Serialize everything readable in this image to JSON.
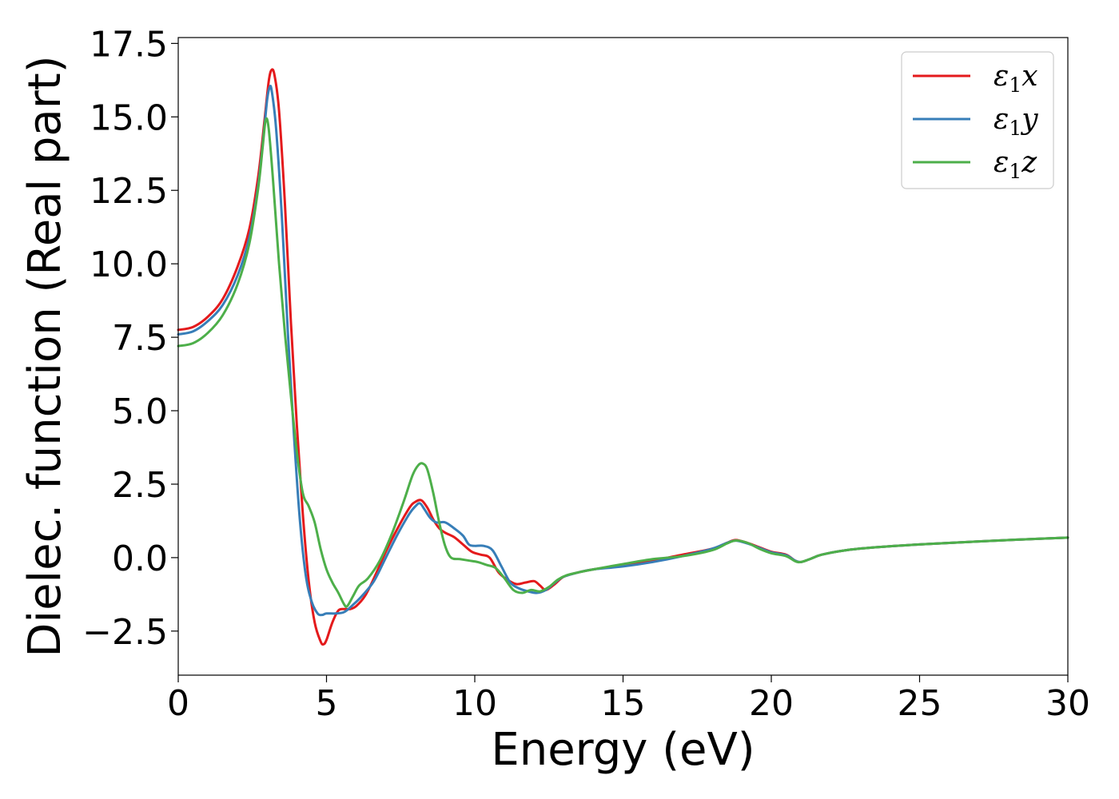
{
  "chart_data": {
    "type": "line",
    "xlabel": "Energy (eV)",
    "ylabel": "Dielec. function (Real part)",
    "xlim": [
      0,
      30
    ],
    "ylim": [
      -4.0,
      17.7
    ],
    "xticks": [
      0,
      5,
      10,
      15,
      20,
      25,
      30
    ],
    "xtick_labels": [
      "0",
      "5",
      "10",
      "15",
      "20",
      "25",
      "30"
    ],
    "yticks": [
      -2.5,
      0.0,
      2.5,
      5.0,
      7.5,
      10.0,
      12.5,
      15.0,
      17.5
    ],
    "ytick_labels": [
      "−2.5",
      "0.0",
      "2.5",
      "5.0",
      "7.5",
      "10.0",
      "12.5",
      "15.0",
      "17.5"
    ],
    "grid": false,
    "legend_position": "top-right",
    "series": [
      {
        "name": "ε₁x",
        "legend": {
          "base": "ε",
          "sub": "1",
          "suffix": "x"
        },
        "color": "#e41a1c",
        "points": [
          [
            0,
            7.75
          ],
          [
            0.5,
            7.85
          ],
          [
            1.0,
            8.2
          ],
          [
            1.5,
            8.8
          ],
          [
            2.0,
            9.9
          ],
          [
            2.4,
            11.2
          ],
          [
            2.7,
            13.0
          ],
          [
            2.9,
            14.8
          ],
          [
            3.05,
            16.2
          ],
          [
            3.15,
            16.6
          ],
          [
            3.25,
            16.4
          ],
          [
            3.4,
            15.2
          ],
          [
            3.6,
            12.0
          ],
          [
            3.8,
            8.0
          ],
          [
            4.0,
            4.5
          ],
          [
            4.2,
            1.5
          ],
          [
            4.4,
            -0.8
          ],
          [
            4.6,
            -2.2
          ],
          [
            4.8,
            -2.85
          ],
          [
            4.9,
            -2.95
          ],
          [
            5.0,
            -2.8
          ],
          [
            5.2,
            -2.2
          ],
          [
            5.4,
            -1.8
          ],
          [
            5.6,
            -1.75
          ],
          [
            5.8,
            -1.75
          ],
          [
            6.0,
            -1.65
          ],
          [
            6.3,
            -1.3
          ],
          [
            6.6,
            -0.7
          ],
          [
            7.0,
            0.2
          ],
          [
            7.4,
            1.0
          ],
          [
            7.8,
            1.7
          ],
          [
            8.0,
            1.9
          ],
          [
            8.2,
            1.95
          ],
          [
            8.4,
            1.7
          ],
          [
            8.6,
            1.3
          ],
          [
            8.8,
            1.0
          ],
          [
            9.0,
            0.85
          ],
          [
            9.3,
            0.7
          ],
          [
            9.6,
            0.45
          ],
          [
            9.9,
            0.2
          ],
          [
            10.2,
            0.1
          ],
          [
            10.5,
            0.0
          ],
          [
            10.8,
            -0.5
          ],
          [
            11.1,
            -0.75
          ],
          [
            11.4,
            -0.9
          ],
          [
            11.7,
            -0.85
          ],
          [
            12.0,
            -0.8
          ],
          [
            12.2,
            -0.95
          ],
          [
            12.4,
            -1.1
          ],
          [
            12.7,
            -0.9
          ],
          [
            13.0,
            -0.65
          ],
          [
            13.5,
            -0.5
          ],
          [
            14.0,
            -0.4
          ],
          [
            15.0,
            -0.25
          ],
          [
            16.0,
            -0.1
          ],
          [
            17.0,
            0.1
          ],
          [
            18.0,
            0.3
          ],
          [
            18.5,
            0.5
          ],
          [
            18.8,
            0.6
          ],
          [
            19.2,
            0.5
          ],
          [
            19.6,
            0.35
          ],
          [
            20.0,
            0.2
          ],
          [
            20.5,
            0.1
          ],
          [
            20.8,
            -0.1
          ],
          [
            21.0,
            -0.15
          ],
          [
            21.3,
            -0.05
          ],
          [
            21.7,
            0.1
          ],
          [
            22.5,
            0.25
          ],
          [
            23.5,
            0.35
          ],
          [
            25.0,
            0.45
          ],
          [
            27.0,
            0.55
          ],
          [
            28.5,
            0.62
          ],
          [
            30.0,
            0.68
          ]
        ]
      },
      {
        "name": "ε₁y",
        "legend": {
          "base": "ε",
          "sub": "1",
          "suffix": "y"
        },
        "color": "#377eb8",
        "points": [
          [
            0,
            7.6
          ],
          [
            0.5,
            7.7
          ],
          [
            1.0,
            8.05
          ],
          [
            1.5,
            8.6
          ],
          [
            2.0,
            9.6
          ],
          [
            2.4,
            10.9
          ],
          [
            2.7,
            12.7
          ],
          [
            2.9,
            14.6
          ],
          [
            3.0,
            15.6
          ],
          [
            3.08,
            16.0
          ],
          [
            3.15,
            15.9
          ],
          [
            3.3,
            14.6
          ],
          [
            3.5,
            11.5
          ],
          [
            3.7,
            7.6
          ],
          [
            3.9,
            4.2
          ],
          [
            4.1,
            1.3
          ],
          [
            4.3,
            -0.6
          ],
          [
            4.5,
            -1.5
          ],
          [
            4.7,
            -1.9
          ],
          [
            4.85,
            -1.95
          ],
          [
            5.0,
            -1.9
          ],
          [
            5.3,
            -1.9
          ],
          [
            5.6,
            -1.85
          ],
          [
            5.9,
            -1.6
          ],
          [
            6.2,
            -1.3
          ],
          [
            6.6,
            -0.8
          ],
          [
            7.0,
            0.0
          ],
          [
            7.4,
            0.8
          ],
          [
            7.8,
            1.5
          ],
          [
            8.0,
            1.75
          ],
          [
            8.15,
            1.85
          ],
          [
            8.3,
            1.65
          ],
          [
            8.5,
            1.35
          ],
          [
            8.7,
            1.2
          ],
          [
            9.0,
            1.2
          ],
          [
            9.3,
            1.0
          ],
          [
            9.6,
            0.75
          ],
          [
            9.8,
            0.45
          ],
          [
            10.0,
            0.4
          ],
          [
            10.3,
            0.4
          ],
          [
            10.6,
            0.25
          ],
          [
            10.9,
            -0.3
          ],
          [
            11.2,
            -0.85
          ],
          [
            11.5,
            -1.05
          ],
          [
            11.8,
            -1.15
          ],
          [
            12.1,
            -1.2
          ],
          [
            12.4,
            -1.1
          ],
          [
            12.7,
            -0.85
          ],
          [
            13.0,
            -0.65
          ],
          [
            13.5,
            -0.5
          ],
          [
            14.0,
            -0.4
          ],
          [
            15.0,
            -0.3
          ],
          [
            16.0,
            -0.15
          ],
          [
            17.0,
            0.05
          ],
          [
            18.0,
            0.3
          ],
          [
            18.5,
            0.5
          ],
          [
            18.8,
            0.58
          ],
          [
            19.2,
            0.48
          ],
          [
            19.6,
            0.33
          ],
          [
            20.0,
            0.18
          ],
          [
            20.5,
            0.08
          ],
          [
            20.8,
            -0.1
          ],
          [
            21.0,
            -0.15
          ],
          [
            21.3,
            -0.05
          ],
          [
            21.7,
            0.1
          ],
          [
            22.5,
            0.25
          ],
          [
            23.5,
            0.35
          ],
          [
            25.0,
            0.45
          ],
          [
            27.0,
            0.55
          ],
          [
            28.5,
            0.62
          ],
          [
            30.0,
            0.68
          ]
        ]
      },
      {
        "name": "ε₁z",
        "legend": {
          "base": "ε",
          "sub": "1",
          "suffix": "z"
        },
        "color": "#4daf4a",
        "points": [
          [
            0,
            7.2
          ],
          [
            0.5,
            7.3
          ],
          [
            1.0,
            7.65
          ],
          [
            1.5,
            8.25
          ],
          [
            2.0,
            9.3
          ],
          [
            2.4,
            10.7
          ],
          [
            2.7,
            12.6
          ],
          [
            2.85,
            14.0
          ],
          [
            2.95,
            14.9
          ],
          [
            3.05,
            14.6
          ],
          [
            3.2,
            12.8
          ],
          [
            3.4,
            10.0
          ],
          [
            3.6,
            7.6
          ],
          [
            3.8,
            5.5
          ],
          [
            4.0,
            3.6
          ],
          [
            4.2,
            2.2
          ],
          [
            4.4,
            1.75
          ],
          [
            4.6,
            1.2
          ],
          [
            4.8,
            0.3
          ],
          [
            5.0,
            -0.4
          ],
          [
            5.2,
            -0.85
          ],
          [
            5.4,
            -1.2
          ],
          [
            5.6,
            -1.6
          ],
          [
            5.7,
            -1.65
          ],
          [
            5.9,
            -1.3
          ],
          [
            6.1,
            -0.95
          ],
          [
            6.4,
            -0.7
          ],
          [
            6.8,
            -0.1
          ],
          [
            7.2,
            0.8
          ],
          [
            7.6,
            1.9
          ],
          [
            7.9,
            2.8
          ],
          [
            8.1,
            3.15
          ],
          [
            8.25,
            3.2
          ],
          [
            8.4,
            3.0
          ],
          [
            8.6,
            2.2
          ],
          [
            8.8,
            1.2
          ],
          [
            9.0,
            0.4
          ],
          [
            9.2,
            0.0
          ],
          [
            9.5,
            -0.05
          ],
          [
            9.8,
            -0.1
          ],
          [
            10.1,
            -0.15
          ],
          [
            10.4,
            -0.25
          ],
          [
            10.7,
            -0.35
          ],
          [
            11.0,
            -0.7
          ],
          [
            11.3,
            -1.1
          ],
          [
            11.6,
            -1.2
          ],
          [
            11.9,
            -1.1
          ],
          [
            12.2,
            -1.15
          ],
          [
            12.5,
            -1.0
          ],
          [
            12.8,
            -0.75
          ],
          [
            13.1,
            -0.6
          ],
          [
            13.5,
            -0.5
          ],
          [
            14.0,
            -0.4
          ],
          [
            15.0,
            -0.22
          ],
          [
            16.0,
            -0.05
          ],
          [
            17.0,
            0.05
          ],
          [
            18.0,
            0.25
          ],
          [
            18.5,
            0.48
          ],
          [
            18.8,
            0.58
          ],
          [
            19.2,
            0.5
          ],
          [
            19.6,
            0.3
          ],
          [
            20.0,
            0.15
          ],
          [
            20.5,
            0.05
          ],
          [
            20.8,
            -0.12
          ],
          [
            21.0,
            -0.15
          ],
          [
            21.3,
            -0.05
          ],
          [
            21.7,
            0.1
          ],
          [
            22.5,
            0.25
          ],
          [
            23.5,
            0.35
          ],
          [
            25.0,
            0.45
          ],
          [
            27.0,
            0.55
          ],
          [
            28.5,
            0.62
          ],
          [
            30.0,
            0.68
          ]
        ]
      }
    ]
  }
}
